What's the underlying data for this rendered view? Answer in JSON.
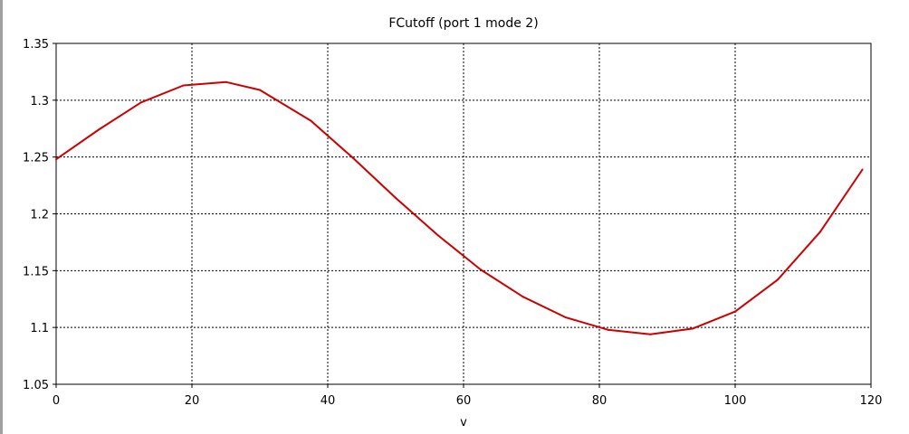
{
  "chart_data": {
    "type": "line",
    "title": "FCutoff (port 1 mode 2)",
    "xlabel": "v",
    "ylabel": "",
    "xlim": [
      0,
      120
    ],
    "ylim": [
      1.05,
      1.35
    ],
    "x_ticks": [
      "0",
      "20",
      "40",
      "60",
      "80",
      "100",
      "120"
    ],
    "y_ticks": [
      "1.05",
      "1.1",
      "1.15",
      "1.2",
      "1.25",
      "1.3",
      "1.35"
    ],
    "grid": true,
    "series": [
      {
        "color": "#cc0000",
        "x": [
          0,
          6.25,
          12.5,
          18.75,
          25,
          30,
          37.5,
          43.75,
          50,
          56.25,
          62.5,
          68.75,
          75,
          81.25,
          87.5,
          93.75,
          100,
          106.25,
          112.5,
          118.75
        ],
        "y": [
          1.248,
          1.274,
          1.298,
          1.313,
          1.316,
          1.309,
          1.282,
          1.249,
          1.214,
          1.181,
          1.151,
          1.127,
          1.109,
          1.098,
          1.094,
          1.099,
          1.114,
          1.142,
          1.184,
          1.239
        ]
      }
    ]
  }
}
